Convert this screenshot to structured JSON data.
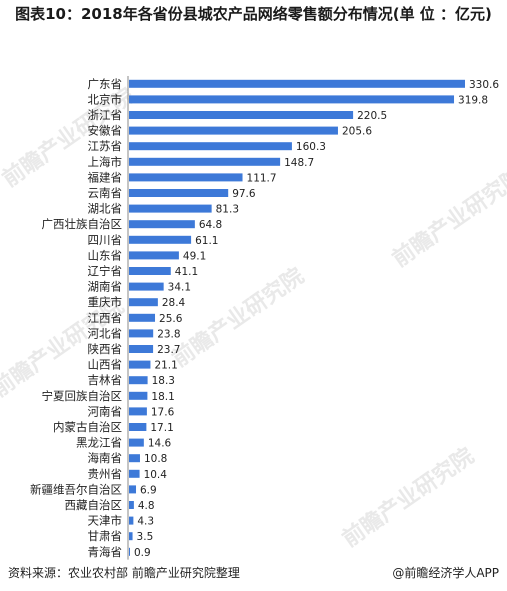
{
  "title": "图表10：2018年各省份县城农产品网络零售额分布情况(单 位 ：亿元)",
  "footer": {
    "source": "资料来源：农业农村部 前瞻产业研究院整理",
    "brand": "@前瞻经济学人APP"
  },
  "watermark": "前瞻产业研究院",
  "bar_color": "#3d79d8",
  "chart_data": {
    "type": "bar",
    "orientation": "horizontal",
    "categories": [
      "广东省",
      "北京市",
      "浙江省",
      "安徽省",
      "江苏省",
      "上海市",
      "福建省",
      "云南省",
      "湖北省",
      "广西壮族自治区",
      "四川省",
      "山东省",
      "辽宁省",
      "湖南省",
      "重庆市",
      "江西省",
      "河北省",
      "陕西省",
      "山西省",
      "吉林省",
      "宁夏回族自治区",
      "河南省",
      "内蒙古自治区",
      "黑龙江省",
      "海南省",
      "贵州省",
      "新疆维吾尔自治区",
      "西藏自治区",
      "天津市",
      "甘肃省",
      "青海省"
    ],
    "values": [
      330.6,
      319.8,
      220.5,
      205.6,
      160.3,
      148.7,
      111.7,
      97.6,
      81.3,
      64.8,
      61.1,
      49.1,
      41.1,
      34.1,
      28.4,
      25.6,
      23.8,
      23.7,
      21.1,
      18.3,
      18.1,
      17.6,
      17.1,
      14.6,
      10.8,
      10.4,
      6.9,
      4.8,
      4.3,
      3.5,
      0.9
    ],
    "value_labels": [
      "330.6",
      "319.8",
      "220.5",
      "205.6",
      "160.3",
      "148.7",
      "111.7",
      "97.6",
      "81.3",
      "64.8",
      "61.1",
      "49.1",
      "41.1",
      "34.1",
      "28.4",
      "25.6",
      "23.8",
      "23.7",
      "21.1",
      "18.3",
      "18.1",
      "17.6",
      "17.1",
      "14.6",
      "10.8",
      "10.4",
      "6.9",
      "4.8",
      "4.3",
      "3.5",
      "0.9"
    ]
  }
}
